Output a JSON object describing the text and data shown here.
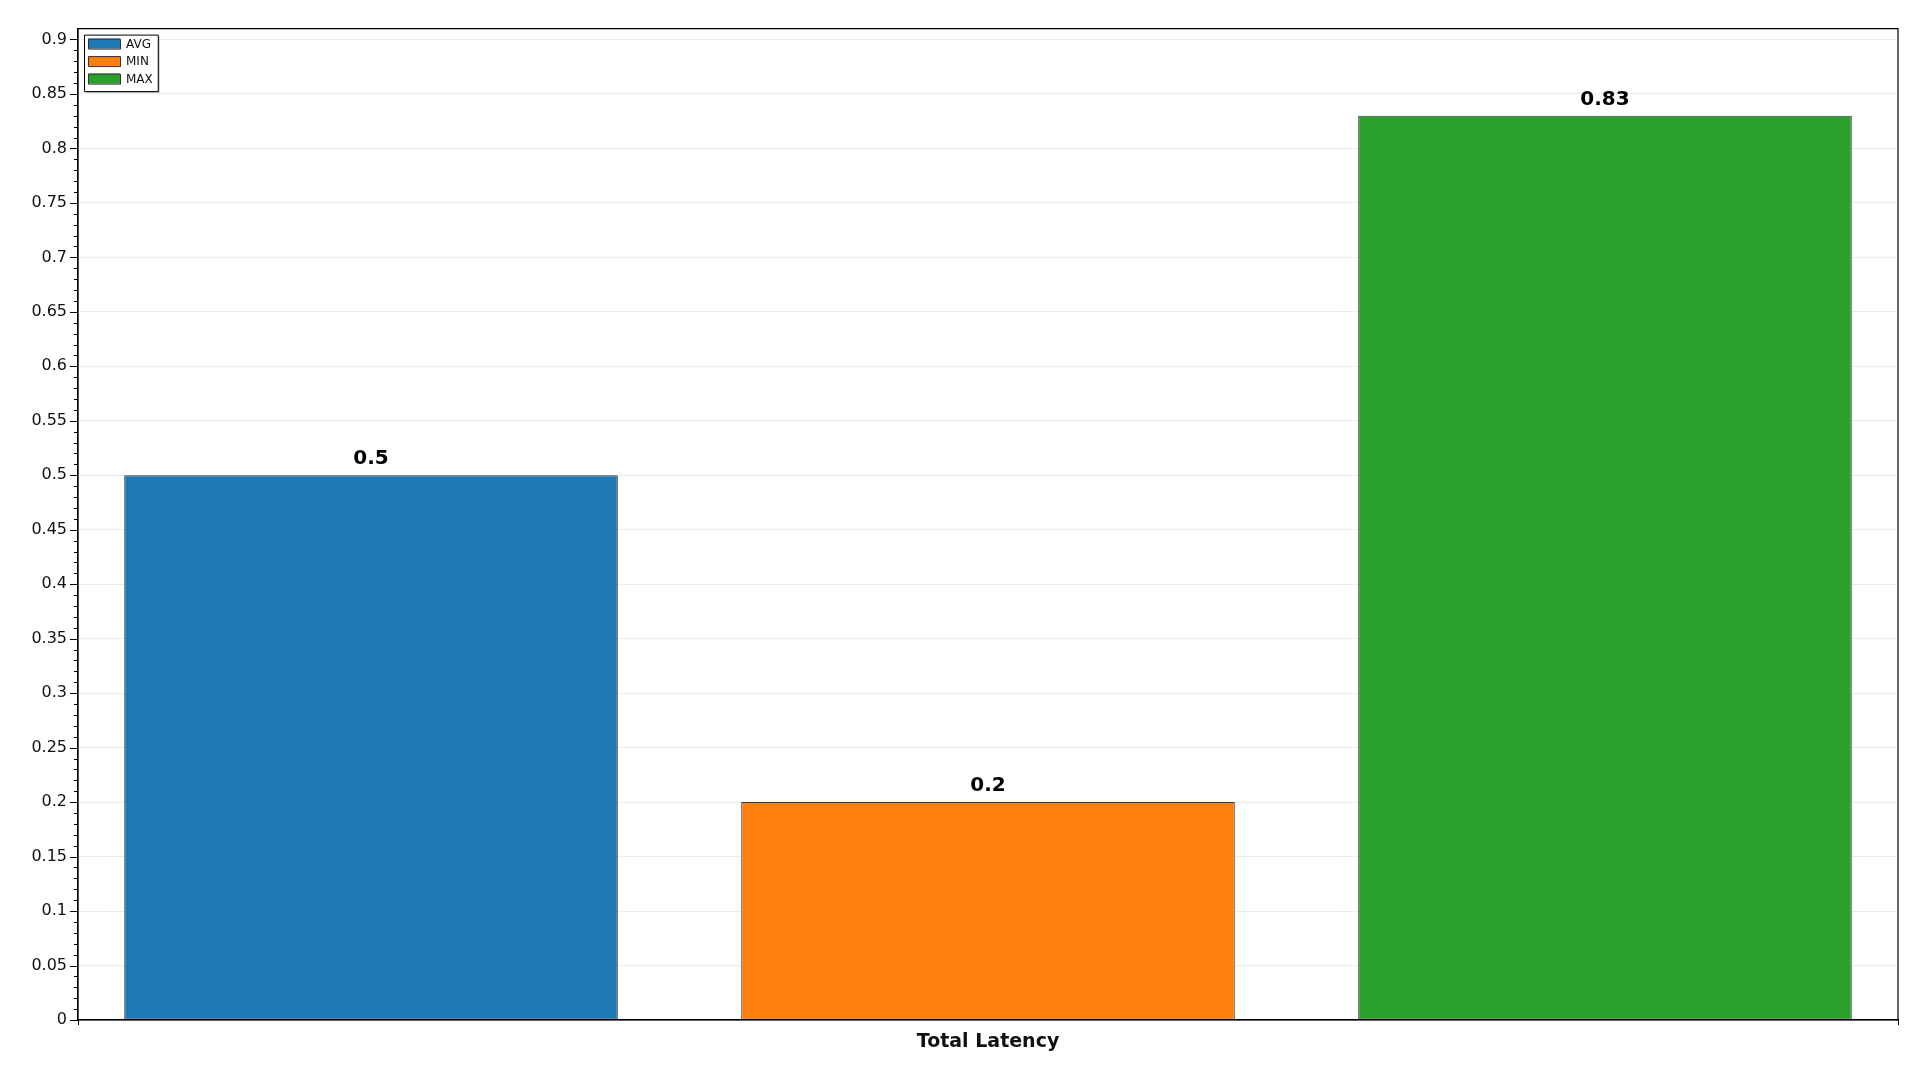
{
  "chart_data": {
    "type": "bar",
    "categories": [
      "Total Latency"
    ],
    "series": [
      {
        "name": "AVG",
        "color": "#1f77b4",
        "values": [
          0.5
        ]
      },
      {
        "name": "MIN",
        "color": "#ff7f0e",
        "values": [
          0.2
        ]
      },
      {
        "name": "MAX",
        "color": "#2ca02c",
        "values": [
          0.83
        ]
      }
    ],
    "ylim": [
      0,
      0.91
    ],
    "yticks": [
      0,
      {
        "value": 0.01,
        "label": null
      },
      {
        "value": 0.02,
        "label": null
      },
      {
        "value": 0.03,
        "label": null
      },
      {
        "value": 0.04,
        "label": null
      },
      0.05,
      {
        "value": 0.06,
        "label": null
      },
      {
        "value": 0.07,
        "label": null
      },
      {
        "value": 0.08,
        "label": null
      },
      {
        "value": 0.09,
        "label": null
      },
      0.1,
      {
        "value": 0.11,
        "label": null
      },
      {
        "value": 0.12,
        "label": null
      },
      {
        "value": 0.13,
        "label": null
      },
      {
        "value": 0.14,
        "label": null
      },
      0.15,
      {
        "value": 0.16,
        "label": null
      },
      {
        "value": 0.17,
        "label": null
      },
      {
        "value": 0.18,
        "label": null
      },
      {
        "value": 0.19,
        "label": null
      },
      0.2,
      {
        "value": 0.21,
        "label": null
      },
      {
        "value": 0.22,
        "label": null
      },
      {
        "value": 0.23,
        "label": null
      },
      {
        "value": 0.24,
        "label": null
      },
      0.25,
      {
        "value": 0.26,
        "label": null
      },
      {
        "value": 0.27,
        "label": null
      },
      {
        "value": 0.28,
        "label": null
      },
      {
        "value": 0.29,
        "label": null
      },
      0.3,
      {
        "value": 0.31,
        "label": null
      },
      {
        "value": 0.32,
        "label": null
      },
      {
        "value": 0.33,
        "label": null
      },
      {
        "value": 0.34,
        "label": null
      },
      0.35,
      {
        "value": 0.36,
        "label": null
      },
      {
        "value": 0.37,
        "label": null
      },
      {
        "value": 0.38,
        "label": null
      },
      {
        "value": 0.39,
        "label": null
      },
      0.4,
      {
        "value": 0.41,
        "label": null
      },
      {
        "value": 0.42,
        "label": null
      },
      {
        "value": 0.43,
        "label": null
      },
      {
        "value": 0.44,
        "label": null
      },
      0.45,
      {
        "value": 0.46,
        "label": null
      },
      {
        "value": 0.47,
        "label": null
      },
      {
        "value": 0.48,
        "label": null
      },
      {
        "value": 0.49,
        "label": null
      },
      0.5,
      {
        "value": 0.51,
        "label": null
      },
      {
        "value": 0.52,
        "label": null
      },
      {
        "value": 0.53,
        "label": null
      },
      {
        "value": 0.54,
        "label": null
      },
      0.55,
      {
        "value": 0.56,
        "label": null
      },
      {
        "value": 0.57,
        "label": null
      },
      {
        "value": 0.58,
        "label": null
      },
      {
        "value": 0.59,
        "label": null
      },
      0.6,
      {
        "value": 0.61,
        "label": null
      },
      {
        "value": 0.62,
        "label": null
      },
      {
        "value": 0.63,
        "label": null
      },
      {
        "value": 0.64,
        "label": null
      },
      0.65,
      {
        "value": 0.66,
        "label": null
      },
      {
        "value": 0.67,
        "label": null
      },
      {
        "value": 0.68,
        "label": null
      },
      {
        "value": 0.69,
        "label": null
      },
      0.7,
      {
        "value": 0.71,
        "label": null
      },
      {
        "value": 0.72,
        "label": null
      },
      {
        "value": 0.73,
        "label": null
      },
      {
        "value": 0.74,
        "label": null
      },
      0.75,
      {
        "value": 0.76,
        "label": null
      },
      {
        "value": 0.77,
        "label": null
      },
      {
        "value": 0.78,
        "label": null
      },
      {
        "value": 0.79,
        "label": null
      },
      0.8,
      {
        "value": 0.81,
        "label": null
      },
      {
        "value": 0.82,
        "label": null
      },
      {
        "value": 0.83,
        "label": null
      },
      {
        "value": 0.84,
        "label": null
      },
      0.85,
      {
        "value": 0.86,
        "label": null
      },
      {
        "value": 0.87,
        "label": null
      },
      {
        "value": 0.88,
        "label": null
      },
      {
        "value": 0.89,
        "label": null
      },
      0.9
    ],
    "grid": "y",
    "legend": "top left",
    "data_labels": true
  }
}
